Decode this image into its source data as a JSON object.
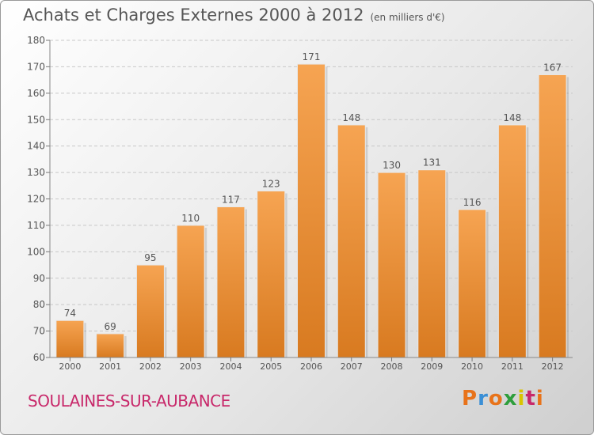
{
  "header": {
    "title": "Achats et Charges Externes 2000 à 2012",
    "unit": "(en milliers d'€)"
  },
  "footer": {
    "location": "SOULAINES-SUR-AUBANCE",
    "brand": "Proxiti",
    "brand_colors": [
      "#e8731a",
      "#3a8fd6",
      "#e8731a",
      "#2e9e3c",
      "#d8c400",
      "#c8286a",
      "#e8731a"
    ]
  },
  "chart_data": {
    "type": "bar",
    "title": "Achats et Charges Externes 2000 à 2012",
    "subtitle": "(en milliers d'€)",
    "categories": [
      "2000",
      "2001",
      "2002",
      "2003",
      "2004",
      "2005",
      "2006",
      "2007",
      "2008",
      "2009",
      "2010",
      "2011",
      "2012"
    ],
    "values": [
      74,
      69,
      95,
      110,
      117,
      123,
      171,
      148,
      130,
      131,
      116,
      148,
      167
    ],
    "ylim": [
      60,
      180
    ],
    "yticks": [
      60,
      70,
      80,
      90,
      100,
      110,
      120,
      130,
      140,
      150,
      160,
      170,
      180
    ],
    "grid": true,
    "bar_color_top": "#f6a452",
    "bar_color_bottom": "#d87a20"
  }
}
